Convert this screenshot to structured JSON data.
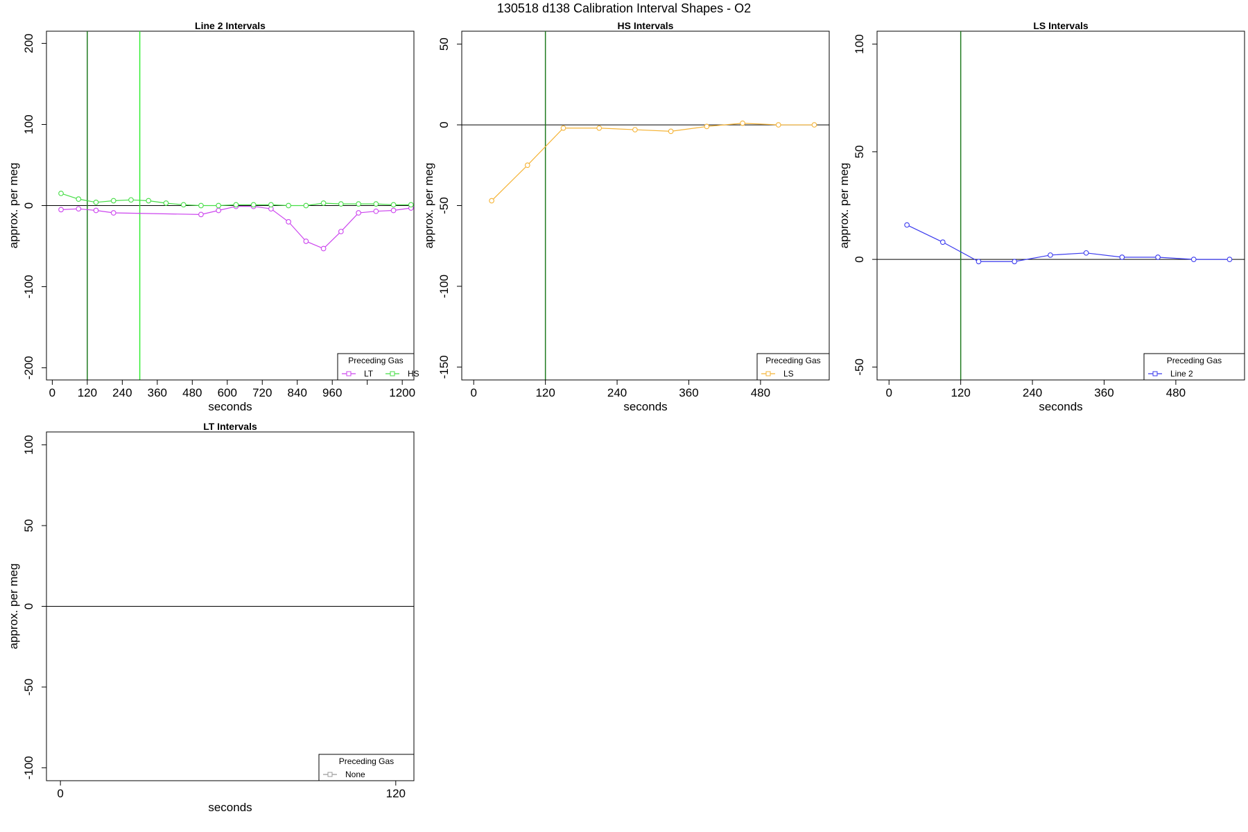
{
  "figure_title": "130518   d138   Calibration Interval Shapes - O2",
  "legend_title": "Preceding Gas",
  "chart_data": [
    {
      "type": "line",
      "title": "Line 2 Intervals",
      "xlabel": "seconds",
      "ylabel": "approx. per meg",
      "xlim": [
        -20,
        1240
      ],
      "ylim": [
        -215,
        215
      ],
      "x_ticks": [
        0,
        120,
        240,
        360,
        480,
        600,
        720,
        840,
        960,
        1080,
        1200
      ],
      "x_tick_labels": [
        "0",
        "120",
        "240",
        "360",
        "480",
        "600",
        "720",
        "840",
        "960",
        "",
        "1200"
      ],
      "y_ticks": [
        -200,
        -100,
        0,
        100,
        200
      ],
      "y_tick_labels": [
        "-200",
        "-100",
        "0",
        "100",
        "200"
      ],
      "vlines": [
        {
          "x": 120,
          "color": "#1f7a1f"
        },
        {
          "x": 300,
          "color": "#33ee33"
        }
      ],
      "legend_position": "bottom-right",
      "series": [
        {
          "name": "LT",
          "color": "#cc44ee",
          "x": [
            30,
            90,
            150,
            210,
            510,
            570,
            630,
            690,
            750,
            810,
            870,
            930,
            990,
            1050,
            1110,
            1170,
            1230
          ],
          "y": [
            -5,
            -4,
            -6,
            -9,
            -11,
            -6,
            -1,
            -1,
            -4,
            -20,
            -44,
            -53,
            -32,
            -9,
            -7,
            -6,
            -3
          ]
        },
        {
          "name": "HS",
          "color": "#44dd44",
          "x": [
            30,
            90,
            150,
            210,
            270,
            330,
            390,
            450,
            510,
            570,
            630,
            690,
            750,
            810,
            870,
            930,
            990,
            1050,
            1110,
            1170,
            1230
          ],
          "y": [
            15,
            8,
            4,
            6,
            7,
            6,
            3,
            1,
            0,
            0,
            1,
            1,
            1,
            0,
            0,
            3,
            2,
            2,
            2,
            1,
            1
          ]
        }
      ]
    },
    {
      "type": "line",
      "title": "HS Intervals",
      "xlabel": "seconds",
      "ylabel": "approx. per meg",
      "xlim": [
        -20,
        595
      ],
      "ylim": [
        -158,
        58
      ],
      "x_ticks": [
        0,
        120,
        240,
        360,
        480
      ],
      "x_tick_labels": [
        "0",
        "120",
        "240",
        "360",
        "480"
      ],
      "y_ticks": [
        -150,
        -100,
        -50,
        0,
        50
      ],
      "y_tick_labels": [
        "-150",
        "-100",
        "-50",
        "0",
        "50"
      ],
      "vlines": [
        {
          "x": 120,
          "color": "#1f7a1f"
        }
      ],
      "legend_position": "bottom-right",
      "series": [
        {
          "name": "LS",
          "color": "#f5b335",
          "x": [
            30,
            90,
            150,
            210,
            270,
            330,
            390,
            450,
            510,
            570
          ],
          "y": [
            -47,
            -25,
            -2,
            -2,
            -3,
            -4,
            -1,
            1,
            0,
            0
          ]
        }
      ]
    },
    {
      "type": "line",
      "title": "LS Intervals",
      "xlabel": "seconds",
      "ylabel": "approx. per meg",
      "xlim": [
        -20,
        595
      ],
      "ylim": [
        -56,
        106
      ],
      "x_ticks": [
        0,
        120,
        240,
        360,
        480
      ],
      "x_tick_labels": [
        "0",
        "120",
        "240",
        "360",
        "480"
      ],
      "y_ticks": [
        -50,
        0,
        50,
        100
      ],
      "y_tick_labels": [
        "-50",
        "0",
        "50",
        "100"
      ],
      "vlines": [
        {
          "x": 120,
          "color": "#1f7a1f"
        }
      ],
      "legend_position": "bottom-right",
      "series": [
        {
          "name": "Line 2",
          "color": "#3a3aee",
          "x": [
            30,
            90,
            150,
            210,
            270,
            330,
            390,
            450,
            510,
            570
          ],
          "y": [
            16,
            8,
            -1,
            -1,
            2,
            3,
            1,
            1,
            0,
            0
          ]
        }
      ]
    },
    {
      "type": "line",
      "title": "LT Intervals",
      "xlabel": "seconds",
      "ylabel": "approx. per meg",
      "xlim": [
        -5,
        126.5
      ],
      "ylim": [
        -108,
        108
      ],
      "x_ticks": [
        0,
        120
      ],
      "x_tick_labels": [
        "0",
        "120"
      ],
      "y_ticks": [
        -100,
        -50,
        0,
        50,
        100
      ],
      "y_tick_labels": [
        "-100",
        "-50",
        "0",
        "50",
        "100"
      ],
      "vlines": [],
      "legend_position": "bottom-right",
      "series": [
        {
          "name": "None",
          "color": "#999999",
          "x": [],
          "y": []
        }
      ]
    }
  ]
}
